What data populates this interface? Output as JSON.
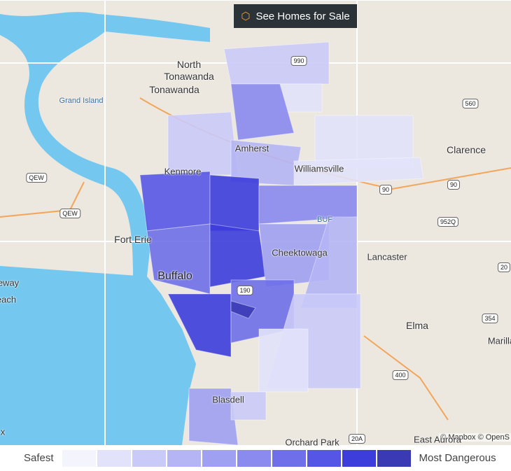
{
  "button": {
    "label": "See Homes for Sale"
  },
  "map": {
    "labels": [
      "North Tonawanda",
      "Tonawanda",
      "Grand Island",
      "Kenmore",
      "Amherst",
      "Williamsville",
      "Clarence",
      "Fort Erie",
      "Buffalo",
      "Cheektowaga",
      "Lancaster",
      "Elma",
      "Blasdell",
      "Orchard Park",
      "East Aurora",
      "Marilla",
      "BUF",
      "eway",
      "each",
      "x"
    ],
    "shields": [
      "990",
      "560",
      "QEW",
      "QEW",
      "90",
      "90",
      "952Q",
      "20",
      "354",
      "400",
      "20A",
      "190"
    ]
  },
  "attribution": "© Mapbox © OpenS",
  "legend": {
    "low_label": "Safest",
    "high_label": "Most Dangerous",
    "colors": [
      "#f4f4fd",
      "#e2e2fb",
      "#cacaf8",
      "#b5b5f5",
      "#a0a0f2",
      "#8a8aef",
      "#6f6fe9",
      "#5656e6",
      "#3d3ddc",
      "#3a3ab5"
    ]
  }
}
